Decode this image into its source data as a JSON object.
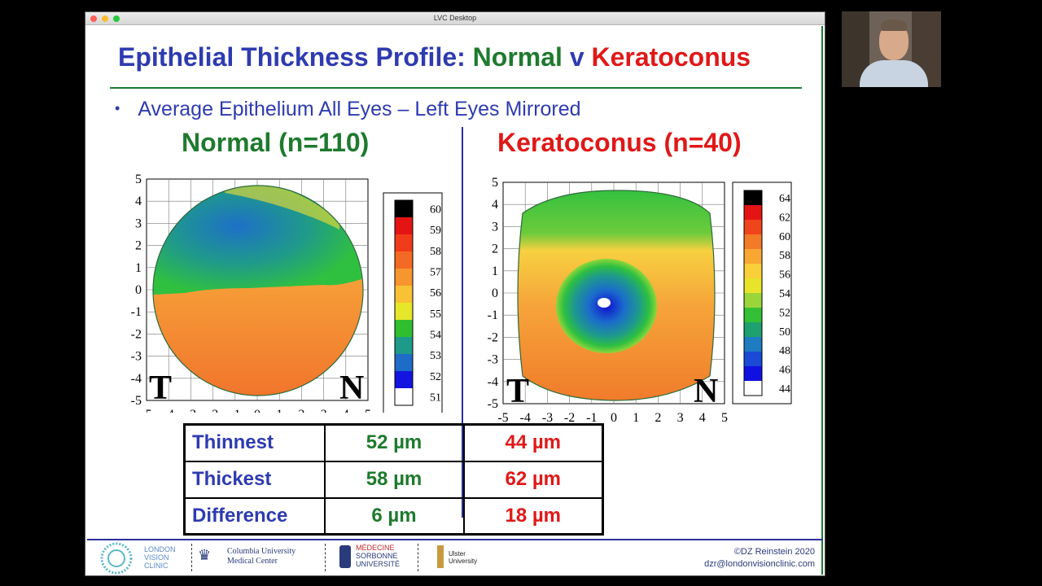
{
  "window": {
    "title": "LVC Desktop"
  },
  "slide": {
    "title_part1": "Epithelial Thickness Profile: ",
    "title_part2": "Normal",
    "title_part3": " v ",
    "title_part4": "Keratoconus",
    "bullet": "Average Epithelium All Eyes – Left Eyes Mirrored",
    "colors": {
      "blue": "#2e3bb0",
      "green": "#1e7a2e",
      "red": "#e01818"
    }
  },
  "panels": [
    {
      "title": "Normal (n=110)",
      "legend": [
        "60",
        "59",
        "58",
        "57",
        "56",
        "55",
        "54",
        "53",
        "52",
        "51"
      ],
      "temporal": "T",
      "nasal": "N"
    },
    {
      "title": "Keratoconus (n=40)",
      "legend": [
        "64",
        "62",
        "60",
        "58",
        "56",
        "54",
        "52",
        "50",
        "48",
        "46",
        "44"
      ],
      "temporal": "T",
      "nasal": "N"
    }
  ],
  "axes": {
    "ticks": [
      "5",
      "4",
      "3",
      "2",
      "1",
      "0",
      "-1",
      "-2",
      "-3",
      "-4",
      "-5"
    ],
    "xticks": [
      "-5",
      "-4",
      "-3",
      "-2",
      "-1",
      "0",
      "1",
      "2",
      "3",
      "4",
      "5"
    ]
  },
  "table": {
    "rows": [
      {
        "label": "Thinnest",
        "normal": "52 µm",
        "kc": "44 µm"
      },
      {
        "label": "Thickest",
        "normal": "58 µm",
        "kc": "62 µm"
      },
      {
        "label": "Difference",
        "normal": "6 µm",
        "kc": "18 µm"
      }
    ]
  },
  "footer": {
    "logo1_line1": "LONDON",
    "logo1_line2": "VISION",
    "logo1_line3": "CLINIC",
    "logo2_line1": "Columbia University",
    "logo2_line2": "Medical Center",
    "logo3_line1": "MÉDECINE",
    "logo3_line2": "SORBONNE",
    "logo3_line3": "UNIVERSITÉ",
    "logo4_line1": "Ulster",
    "logo4_line2": "University",
    "copyright": "©DZ Reinstein 2020",
    "email": "dzr@londonvisionclinic.com"
  }
}
